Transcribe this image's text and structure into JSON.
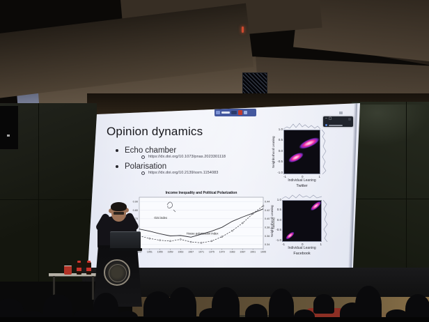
{
  "slide": {
    "title": "Opinion dynamics",
    "bullets": [
      {
        "label": "Echo chamber",
        "link": "https://dx.doi.org/10.1073/pnas.2023301118"
      },
      {
        "label": "Polarisation",
        "link": "https://dx.doi.org/10.2139/ssrn.1154083"
      }
    ]
  },
  "chart_data": {
    "type": "line",
    "title": "Income Inequality and Political Polarization",
    "x": [
      1947,
      1951,
      1955,
      1959,
      1963,
      1967,
      1971,
      1975,
      1979,
      1983,
      1987,
      1991,
      1995
    ],
    "series": [
      {
        "name": "House polarization index",
        "axis": "left",
        "style": "dashed-circles",
        "values": [
          0.5,
          0.47,
          0.45,
          0.44,
          0.46,
          0.43,
          0.42,
          0.44,
          0.49,
          0.56,
          0.65,
          0.76,
          0.85
        ]
      },
      {
        "name": "Gini index",
        "axis": "right",
        "style": "solid",
        "values": [
          0.376,
          0.371,
          0.365,
          0.36,
          0.361,
          0.357,
          0.364,
          0.371,
          0.38,
          0.394,
          0.404,
          0.413,
          0.423
        ]
      }
    ],
    "left_ylim": [
      0.35,
      0.95
    ],
    "right_ylim": [
      0.33,
      0.45
    ],
    "left_ticks": [
      0.4,
      0.5,
      0.6,
      0.7,
      0.8,
      0.9
    ],
    "right_ticks": [
      0.34,
      0.36,
      0.38,
      0.4,
      0.42,
      0.44
    ],
    "label_pos": [
      [
        0.38,
        0.72
      ],
      [
        0.12,
        0.42
      ]
    ],
    "ylabel_right": "Gini index",
    "legend_position": "inline-labels",
    "grid": "horizontal"
  },
  "scatter_plots": [
    {
      "caption": "Twitter",
      "xlabel": "Individual Leaning",
      "ylabel": "Neighborhood Leaning",
      "yticks": [
        "1.0",
        "0.5",
        "0.0",
        "-0.5",
        "-1.0"
      ],
      "xticks": [
        "-1",
        "0",
        "1"
      ]
    },
    {
      "caption": "Facebook",
      "xlabel": "Individual Leaning",
      "ylabel": "Neighborhood Leaning",
      "yticks": [
        "1.0",
        "0.5",
        "0.0",
        "-0.5",
        "-1.0"
      ],
      "xticks": [
        "-1",
        "0",
        "1"
      ]
    }
  ],
  "overlay": {
    "icons": [
      "minimize-icon",
      "window-icon"
    ]
  },
  "colors": {
    "screen_bg": "#e7eaf6",
    "toolbar_blue": "#44589e",
    "accent_red": "#c23b2e",
    "blob_pink": "#e8259a",
    "blob_purple": "#7c2cc4",
    "cola_label_red": "#c8322a",
    "audience_red_jacket": "#8c2f24"
  }
}
